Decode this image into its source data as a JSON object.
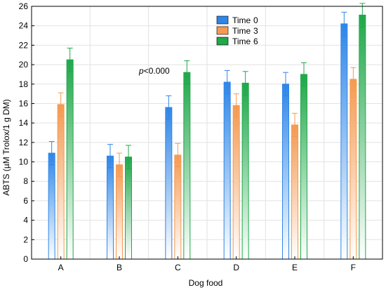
{
  "chart_data": {
    "type": "bar",
    "xlabel": "Dog food",
    "ylabel": "ABTS (µM Trolox/1 g DM)",
    "ylim": [
      0,
      26
    ],
    "ytick_step": 2,
    "categories": [
      "A",
      "B",
      "C",
      "D",
      "E",
      "F"
    ],
    "legend_placement": "top-center",
    "grid": true,
    "series": [
      {
        "name": "Time",
        "time_value": "0",
        "color": "#2f86e8",
        "values": [
          10.9,
          10.6,
          15.6,
          18.2,
          18.0,
          24.2
        ],
        "errors": [
          1.2,
          1.2,
          1.2,
          1.2,
          1.2,
          1.2
        ]
      },
      {
        "name": "Time",
        "time_value": "3",
        "color": "#f59a52",
        "values": [
          15.9,
          9.7,
          10.7,
          15.8,
          13.8,
          18.5
        ],
        "errors": [
          1.2,
          1.2,
          1.2,
          1.2,
          1.2,
          1.2
        ]
      },
      {
        "name": "Time",
        "time_value": "6",
        "color": "#20a84a",
        "values": [
          20.5,
          10.5,
          19.2,
          18.1,
          19.0,
          25.1
        ],
        "errors": [
          1.2,
          1.2,
          1.2,
          1.2,
          1.2,
          1.2
        ]
      }
    ],
    "annotation": "p<0.000"
  }
}
